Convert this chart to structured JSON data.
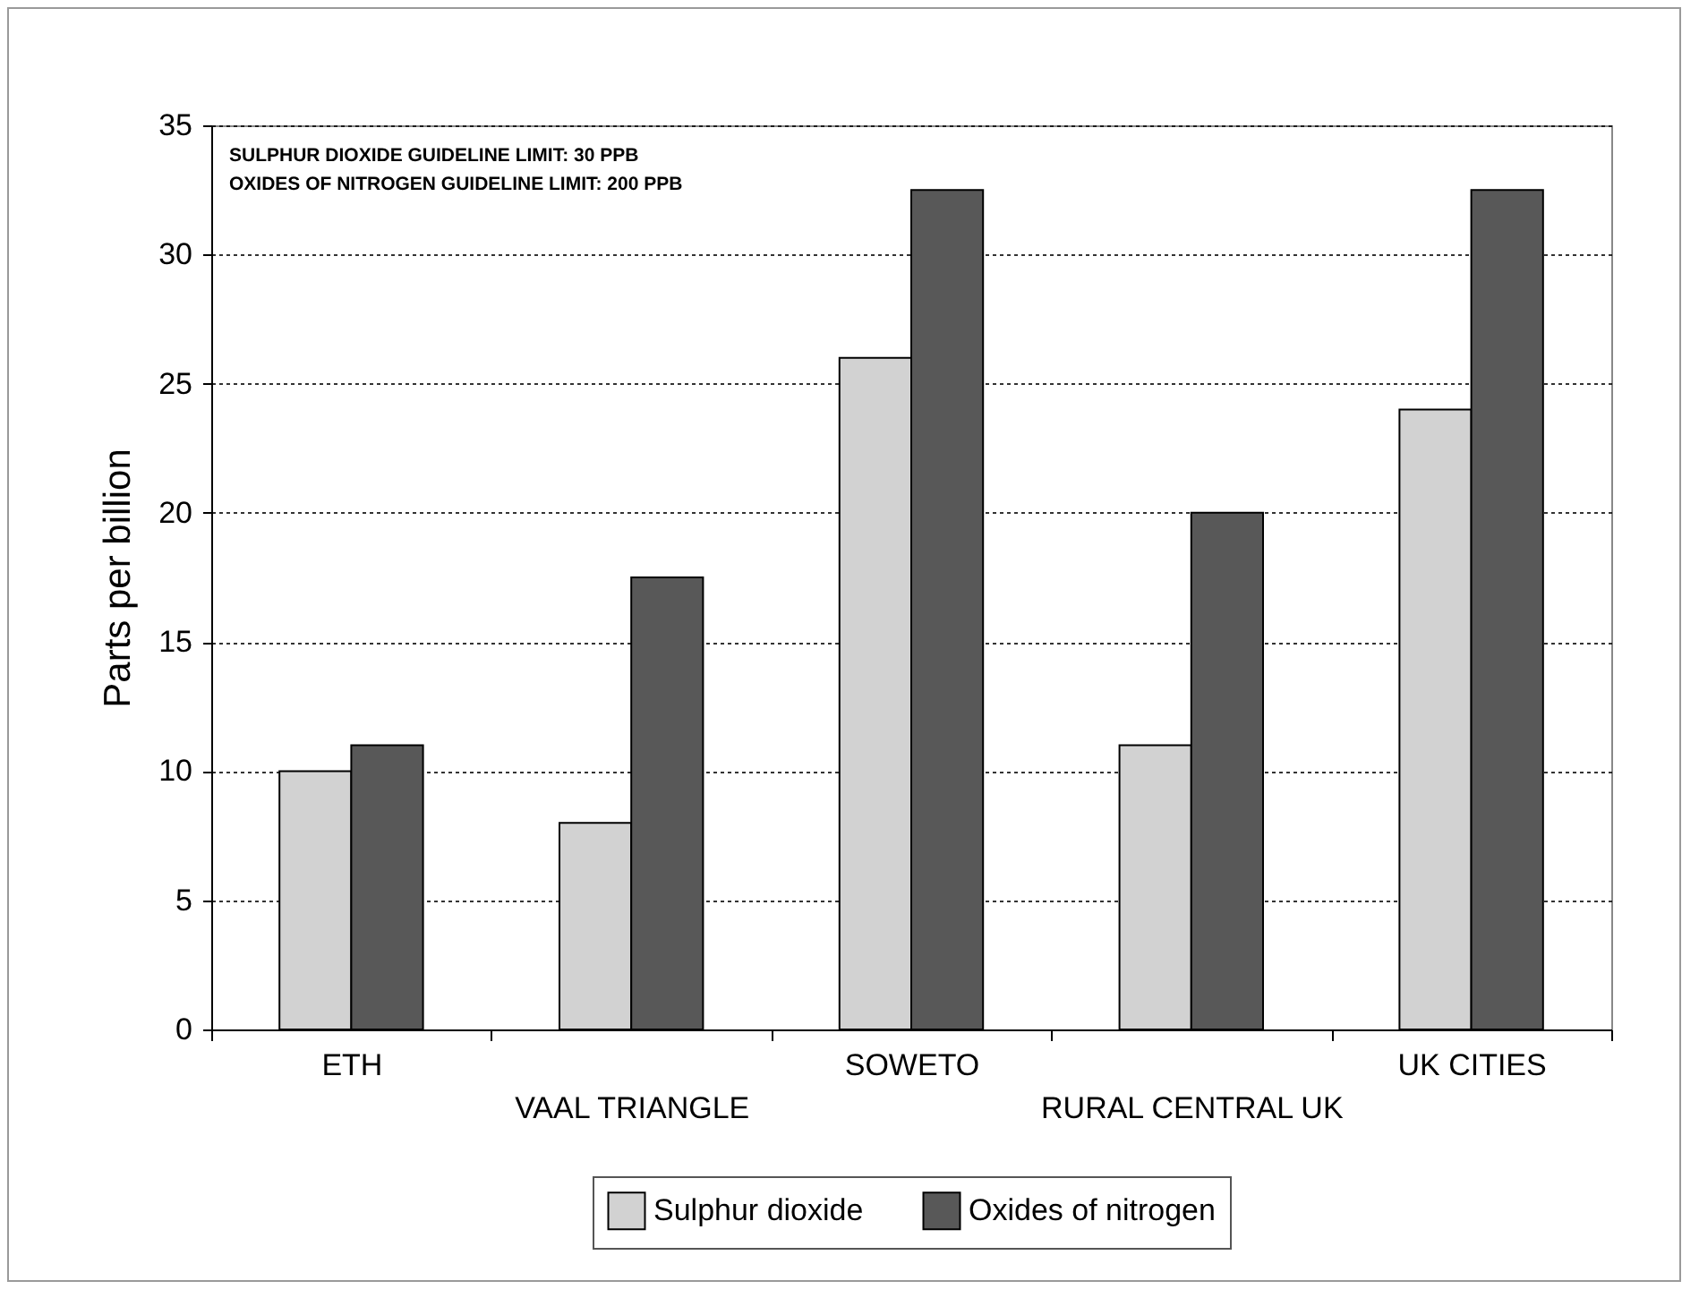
{
  "chart_data": {
    "type": "bar",
    "ylabel": "Parts per billion",
    "annotations": [
      "SULPHUR DIOXIDE GUIDELINE LIMIT: 30 PPB",
      "OXIDES OF NITROGEN GUIDELINE LIMIT: 200 PPB"
    ],
    "categories": [
      "ETH",
      "VAAL TRIANGLE",
      "SOWETO",
      "RURAL CENTRAL UK",
      "UK CITIES"
    ],
    "series": [
      {
        "name": "Sulphur dioxide",
        "color": "#d2d2d2",
        "values": [
          10,
          8,
          26,
          11,
          24
        ]
      },
      {
        "name": "Oxides of nitrogen",
        "color": "#585858",
        "values": [
          11,
          17.5,
          32.5,
          20,
          32.5
        ]
      }
    ],
    "ylim": [
      0,
      35
    ],
    "yticks": [
      0,
      5,
      10,
      15,
      20,
      25,
      30,
      35
    ],
    "grid": "y",
    "legend": "bottom"
  }
}
